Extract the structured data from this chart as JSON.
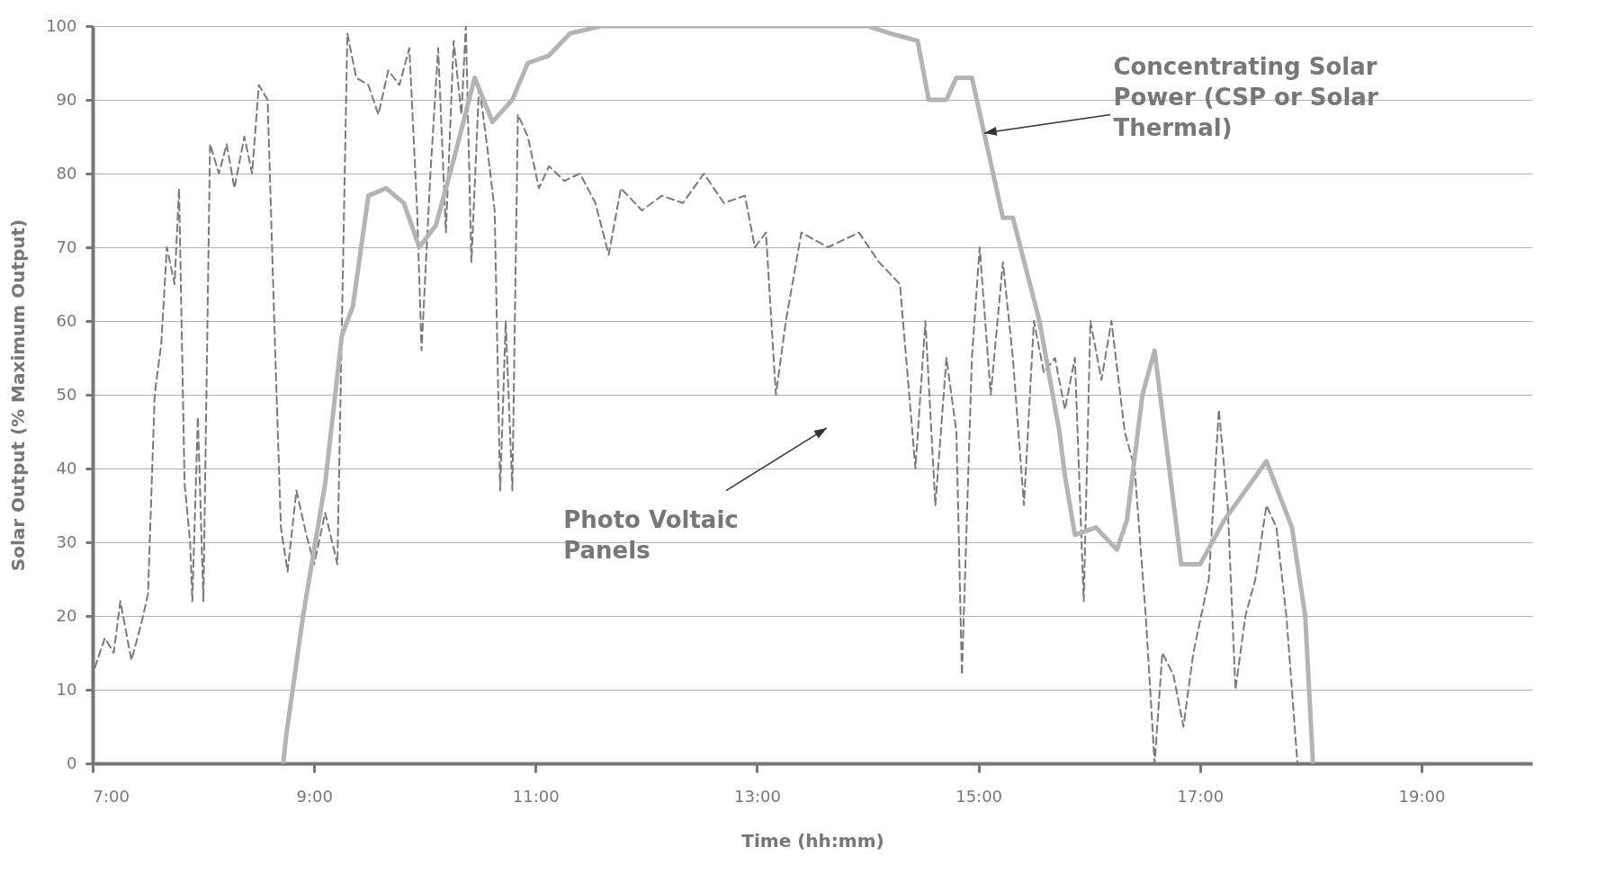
{
  "chart_data": {
    "type": "line",
    "xlabel": "Time (hh:mm)",
    "ylabel": "Solar Output (% Maximum Output)",
    "xlim": [
      7,
      20
    ],
    "ylim": [
      0,
      100
    ],
    "xticks": [
      {
        "value": 7,
        "label": "7:00"
      },
      {
        "value": 9,
        "label": "9:00"
      },
      {
        "value": 11,
        "label": "11:00"
      },
      {
        "value": 13,
        "label": "13:00"
      },
      {
        "value": 15,
        "label": "15:00"
      },
      {
        "value": 17,
        "label": "17:00"
      },
      {
        "value": 19,
        "label": "19:00"
      }
    ],
    "yticks": [
      0,
      10,
      20,
      30,
      40,
      50,
      60,
      70,
      80,
      90,
      100
    ],
    "grid": "y",
    "annotations": [
      {
        "text": "Concentrating Solar Power (CSP or Solar Thermal)",
        "x": 15.05,
        "y": 85.5
      },
      "Photo Voltaic Panels"
    ],
    "series": [
      {
        "color": "#7a7a7a",
        "line_style": "dashed",
        "x": [
          7.02,
          7.11,
          7.19,
          7.25,
          7.35,
          7.44,
          7.5,
          7.56,
          7.62,
          7.67,
          7.74,
          7.78,
          7.83,
          7.88,
          7.9,
          7.95,
          8.0,
          8.06,
          8.14,
          8.21,
          8.28,
          8.37,
          8.44,
          8.5,
          8.58,
          8.65,
          8.7,
          8.76,
          8.84,
          8.93,
          9.0,
          9.1,
          9.21,
          9.3,
          9.38,
          9.49,
          9.58,
          9.67,
          9.77,
          9.86,
          9.93,
          9.97,
          10.05,
          10.12,
          10.19,
          10.26,
          10.33,
          10.37,
          10.42,
          10.49,
          10.56,
          10.63,
          10.68,
          10.73,
          10.79,
          10.84,
          10.93,
          11.03,
          11.12,
          11.26,
          11.4,
          11.54,
          11.66,
          11.77,
          11.96,
          12.14,
          12.33,
          12.52,
          12.7,
          12.89,
          12.98,
          13.08,
          13.17,
          13.26,
          13.4,
          13.64,
          13.92,
          14.1,
          14.29,
          14.43,
          14.52,
          14.61,
          14.71,
          14.8,
          14.85,
          14.94,
          15.01,
          15.11,
          15.22,
          15.31,
          15.41,
          15.5,
          15.59,
          15.69,
          15.78,
          15.87,
          15.95,
          16.01,
          16.11,
          16.2,
          16.32,
          16.41,
          16.51,
          16.59,
          16.66,
          16.76,
          16.85,
          16.94,
          17.08,
          17.17,
          17.25,
          17.32,
          17.41,
          17.5,
          17.6,
          17.69,
          17.78,
          17.88
        ],
        "values": [
          13,
          17,
          15,
          22,
          14,
          19,
          23,
          50,
          57,
          70,
          65,
          78,
          38,
          30,
          22,
          47,
          22,
          84,
          80,
          84,
          78,
          85,
          80,
          92,
          90,
          55,
          32,
          26,
          37,
          31,
          27,
          34,
          27,
          99,
          93,
          92,
          88,
          94,
          92,
          97,
          75,
          56,
          80,
          97,
          72,
          98,
          88,
          100,
          68,
          92,
          84,
          75,
          37,
          60,
          37,
          88,
          85,
          78,
          81,
          79,
          80,
          76,
          69,
          78,
          75,
          77,
          76,
          80,
          76,
          77,
          70,
          72,
          50,
          60,
          72,
          70,
          72,
          68,
          65,
          40,
          60,
          35,
          55,
          45,
          12,
          55,
          70,
          50,
          68,
          55,
          35,
          60,
          53,
          55,
          48,
          55,
          22,
          60,
          52,
          60,
          45,
          40,
          20,
          0,
          15,
          12,
          5,
          15,
          25,
          48,
          35,
          10,
          20,
          25,
          35,
          32,
          20,
          0
        ]
      },
      {
        "color": "#b4b4b4",
        "line_style": "solid",
        "x": [
          8.72,
          8.75,
          8.9,
          9.1,
          9.25,
          9.35,
          9.49,
          9.65,
          9.81,
          9.95,
          10.1,
          10.28,
          10.45,
          10.61,
          10.79,
          10.93,
          11.12,
          11.31,
          11.59,
          12.0,
          12.5,
          13.0,
          13.5,
          14.0,
          14.2,
          14.45,
          14.55,
          14.71,
          14.8,
          14.94,
          15.22,
          15.31,
          15.55,
          15.73,
          15.78,
          15.87,
          16.06,
          16.25,
          16.34,
          16.48,
          16.59,
          16.83,
          17.0,
          17.22,
          17.6,
          17.83,
          17.95,
          18.02
        ],
        "values": [
          0,
          4,
          20,
          38,
          58,
          62,
          77,
          78,
          76,
          70,
          73,
          83,
          93,
          87,
          90,
          95,
          96,
          99,
          100,
          100,
          100,
          100,
          100,
          100,
          99,
          98,
          90,
          90,
          93,
          93,
          74,
          74,
          60,
          45,
          39,
          31,
          32,
          29,
          33,
          50,
          56,
          27,
          27,
          33,
          41,
          32,
          20,
          0
        ]
      }
    ]
  }
}
